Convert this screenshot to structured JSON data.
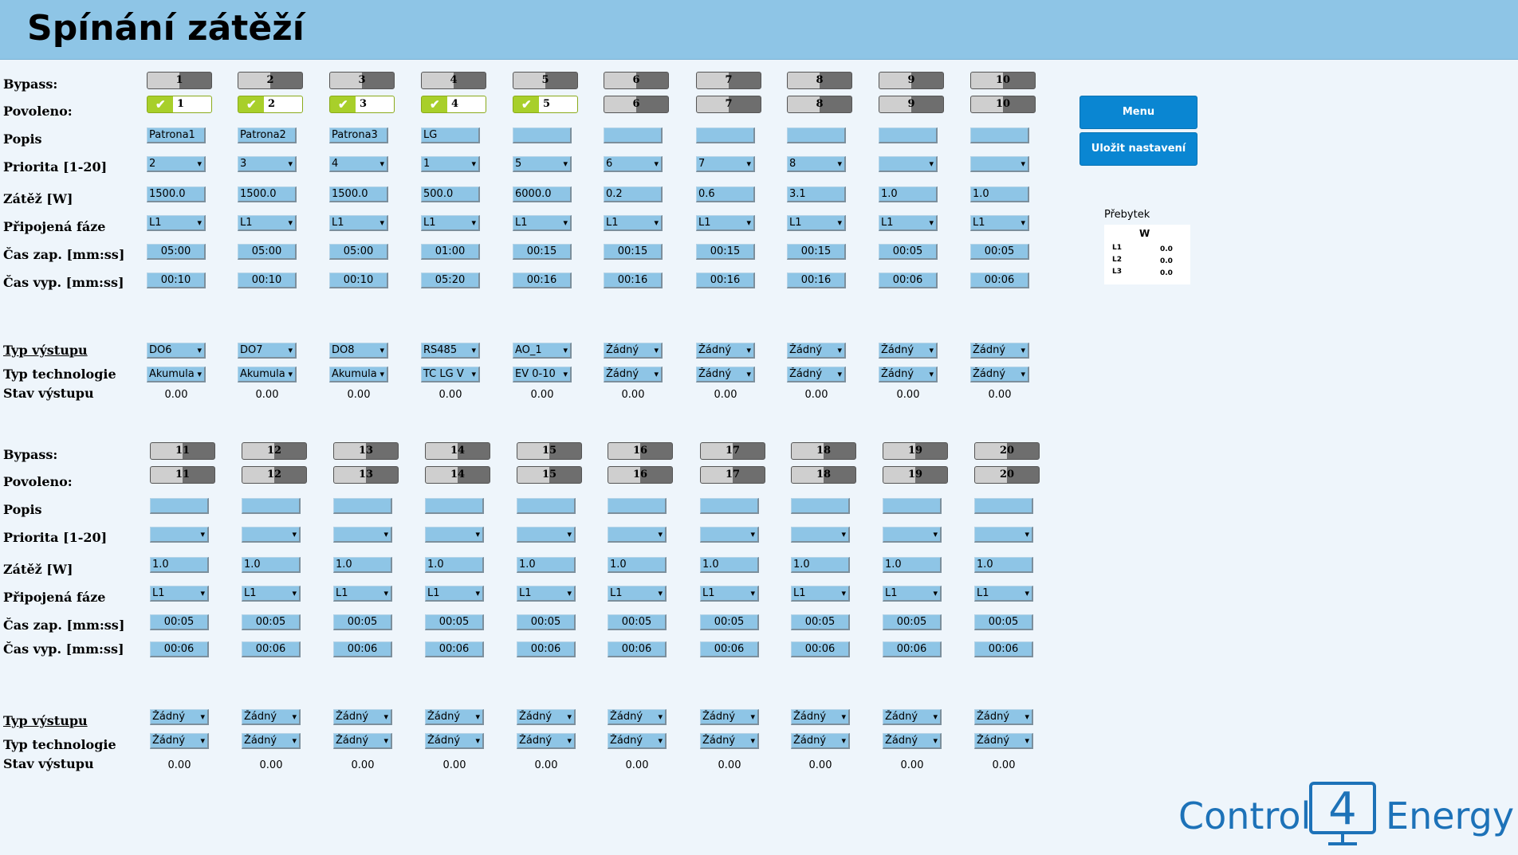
{
  "page": {
    "title": "Spínání zátěží"
  },
  "labels": {
    "bypass": "Bypass:",
    "povoleno": "Povoleno:",
    "popis": "Popis",
    "priorita": "Priorita [1-20]",
    "zatez": "Zátěž [W]",
    "faze": "Připojená fáze",
    "cas_zap": "Čas zap. [mm:ss]",
    "cas_vyp": "Čas vyp. [mm:ss]",
    "typ_vystupu": "Typ výstupu",
    "typ_technologie": "Typ technologie",
    "stav_vystupu": "Stav výstupu"
  },
  "buttons": {
    "menu": "Menu",
    "save": "Uložit nastavení"
  },
  "surplus": {
    "label": "Přebytek",
    "unit": "W",
    "phases": [
      {
        "name": "L1",
        "value": "0.0"
      },
      {
        "name": "L2",
        "value": "0.0"
      },
      {
        "name": "L3",
        "value": "0.0"
      }
    ]
  },
  "brand": {
    "left": "Control",
    "digit": "4",
    "right": "Energy",
    "color": "#1d72b8"
  },
  "colors": {
    "header": "#8ec5e6",
    "field": "#8ec5e6",
    "enabled": "#a8cf2a",
    "button": "#0a86d2"
  },
  "icons": {
    "check": "check-icon",
    "dropdown": "chevron-down-icon"
  },
  "groups": [
    {
      "loads": [
        {
          "num": "1",
          "enabled": true,
          "desc": "Patrona1",
          "priority": "2",
          "power": "1500.0",
          "phase": "L1",
          "on_time": "05:00",
          "off_time": "00:10",
          "output": "DO6",
          "tech": "Akumula",
          "state": "0.00"
        },
        {
          "num": "2",
          "enabled": true,
          "desc": "Patrona2",
          "priority": "3",
          "power": "1500.0",
          "phase": "L1",
          "on_time": "05:00",
          "off_time": "00:10",
          "output": "DO7",
          "tech": "Akumula",
          "state": "0.00"
        },
        {
          "num": "3",
          "enabled": true,
          "desc": "Patrona3",
          "priority": "4",
          "power": "1500.0",
          "phase": "L1",
          "on_time": "05:00",
          "off_time": "00:10",
          "output": "DO8",
          "tech": "Akumula",
          "state": "0.00"
        },
        {
          "num": "4",
          "enabled": true,
          "desc": "LG",
          "priority": "1",
          "power": "500.0",
          "phase": "L1",
          "on_time": "01:00",
          "off_time": "05:20",
          "output": "RS485",
          "tech": "TC LG V",
          "state": "0.00"
        },
        {
          "num": "5",
          "enabled": true,
          "desc": "",
          "priority": "5",
          "power": "6000.0",
          "phase": "L1",
          "on_time": "00:15",
          "off_time": "00:16",
          "output": "AO_1",
          "tech": "EV 0-10",
          "state": "0.00"
        },
        {
          "num": "6",
          "enabled": false,
          "desc": "",
          "priority": "6",
          "power": "0.2",
          "phase": "L1",
          "on_time": "00:15",
          "off_time": "00:16",
          "output": "Žádný",
          "tech": "Žádný",
          "state": "0.00"
        },
        {
          "num": "7",
          "enabled": false,
          "desc": "",
          "priority": "7",
          "power": "0.6",
          "phase": "L1",
          "on_time": "00:15",
          "off_time": "00:16",
          "output": "Žádný",
          "tech": "Žádný",
          "state": "0.00"
        },
        {
          "num": "8",
          "enabled": false,
          "desc": "",
          "priority": "8",
          "power": "3.1",
          "phase": "L1",
          "on_time": "00:15",
          "off_time": "00:16",
          "output": "Žádný",
          "tech": "Žádný",
          "state": "0.00"
        },
        {
          "num": "9",
          "enabled": false,
          "desc": "",
          "priority": "",
          "power": "1.0",
          "phase": "L1",
          "on_time": "00:05",
          "off_time": "00:06",
          "output": "Žádný",
          "tech": "Žádný",
          "state": "0.00"
        },
        {
          "num": "10",
          "enabled": false,
          "desc": "",
          "priority": "",
          "power": "1.0",
          "phase": "L1",
          "on_time": "00:05",
          "off_time": "00:06",
          "output": "Žádný",
          "tech": "Žádný",
          "state": "0.00"
        }
      ]
    },
    {
      "loads": [
        {
          "num": "11",
          "enabled": false,
          "desc": "",
          "priority": "",
          "power": "1.0",
          "phase": "L1",
          "on_time": "00:05",
          "off_time": "00:06",
          "output": "Žádný",
          "tech": "Žádný",
          "state": "0.00"
        },
        {
          "num": "12",
          "enabled": false,
          "desc": "",
          "priority": "",
          "power": "1.0",
          "phase": "L1",
          "on_time": "00:05",
          "off_time": "00:06",
          "output": "Žádný",
          "tech": "Žádný",
          "state": "0.00"
        },
        {
          "num": "13",
          "enabled": false,
          "desc": "",
          "priority": "",
          "power": "1.0",
          "phase": "L1",
          "on_time": "00:05",
          "off_time": "00:06",
          "output": "Žádný",
          "tech": "Žádný",
          "state": "0.00"
        },
        {
          "num": "14",
          "enabled": false,
          "desc": "",
          "priority": "",
          "power": "1.0",
          "phase": "L1",
          "on_time": "00:05",
          "off_time": "00:06",
          "output": "Žádný",
          "tech": "Žádný",
          "state": "0.00"
        },
        {
          "num": "15",
          "enabled": false,
          "desc": "",
          "priority": "",
          "power": "1.0",
          "phase": "L1",
          "on_time": "00:05",
          "off_time": "00:06",
          "output": "Žádný",
          "tech": "Žádný",
          "state": "0.00"
        },
        {
          "num": "16",
          "enabled": false,
          "desc": "",
          "priority": "",
          "power": "1.0",
          "phase": "L1",
          "on_time": "00:05",
          "off_time": "00:06",
          "output": "Žádný",
          "tech": "Žádný",
          "state": "0.00"
        },
        {
          "num": "17",
          "enabled": false,
          "desc": "",
          "priority": "",
          "power": "1.0",
          "phase": "L1",
          "on_time": "00:05",
          "off_time": "00:06",
          "output": "Žádný",
          "tech": "Žádný",
          "state": "0.00"
        },
        {
          "num": "18",
          "enabled": false,
          "desc": "",
          "priority": "",
          "power": "1.0",
          "phase": "L1",
          "on_time": "00:05",
          "off_time": "00:06",
          "output": "Žádný",
          "tech": "Žádný",
          "state": "0.00"
        },
        {
          "num": "19",
          "enabled": false,
          "desc": "",
          "priority": "",
          "power": "1.0",
          "phase": "L1",
          "on_time": "00:05",
          "off_time": "00:06",
          "output": "Žádný",
          "tech": "Žádný",
          "state": "0.00"
        },
        {
          "num": "20",
          "enabled": false,
          "desc": "",
          "priority": "",
          "power": "1.0",
          "phase": "L1",
          "on_time": "00:05",
          "off_time": "00:06",
          "output": "Žádný",
          "tech": "Žádný",
          "state": "0.00"
        }
      ]
    }
  ]
}
